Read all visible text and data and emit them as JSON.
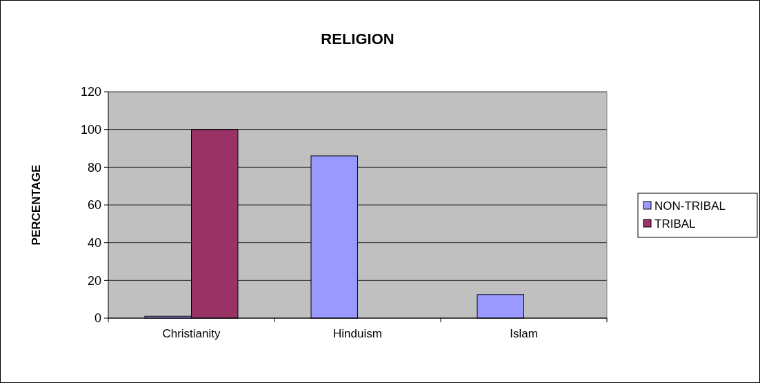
{
  "chart_data": {
    "type": "bar",
    "title": "RELIGION",
    "ylabel": "PERCENTAGE",
    "categories": [
      "Christianity",
      "Hinduism",
      "Islam"
    ],
    "series": [
      {
        "name": "NON-TRIBAL",
        "color": "#9999ff",
        "values": [
          1,
          86,
          12.5
        ]
      },
      {
        "name": "TRIBAL",
        "color": "#993366",
        "values": [
          100,
          0,
          0
        ]
      }
    ],
    "ylim": [
      0,
      120
    ],
    "yticks": [
      0,
      20,
      40,
      60,
      80,
      100,
      120
    ],
    "grid": "y",
    "legend": "right"
  }
}
